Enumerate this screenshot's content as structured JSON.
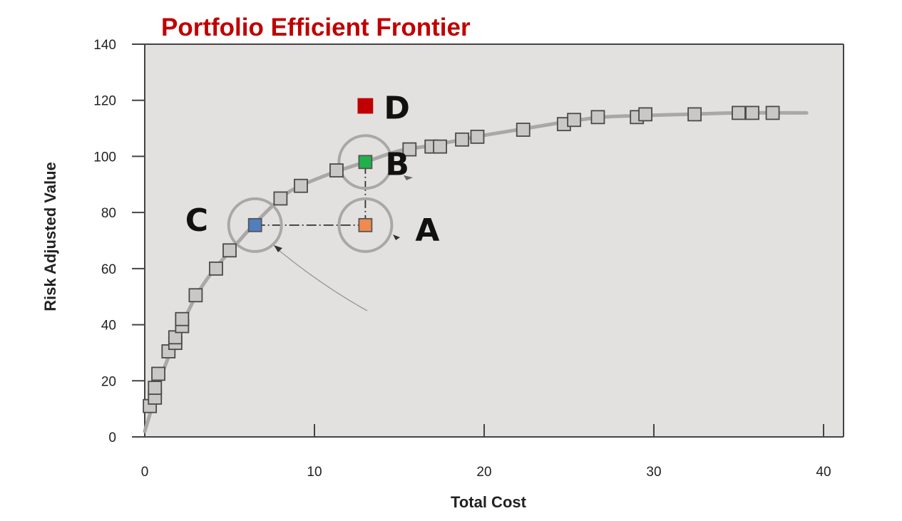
{
  "chart_data": {
    "type": "scatter",
    "title": "Portfolio Efficient Frontier",
    "xlabel": "Total Cost",
    "ylabel": "Risk Adjusted Value",
    "xlim": [
      0,
      40
    ],
    "ylim": [
      0,
      140
    ],
    "xticks": [
      "0",
      "10",
      "20",
      "30",
      "40"
    ],
    "yticks": [
      "0",
      "20",
      "40",
      "60",
      "80",
      "100",
      "120",
      "140"
    ],
    "grid": false,
    "background": "#e2e1e0",
    "frontier_curve": [
      [
        0,
        2
      ],
      [
        0.5,
        12
      ],
      [
        1,
        22
      ],
      [
        1.5,
        30
      ],
      [
        2.2,
        40
      ],
      [
        3,
        50
      ],
      [
        4,
        59
      ],
      [
        5,
        66
      ],
      [
        6.4,
        75.5
      ],
      [
        8,
        85
      ],
      [
        9,
        89
      ],
      [
        11,
        94
      ],
      [
        13,
        98
      ],
      [
        15,
        102
      ],
      [
        17,
        104
      ],
      [
        20,
        107.5
      ],
      [
        22.5,
        110
      ],
      [
        25,
        112.5
      ],
      [
        27,
        114
      ],
      [
        29,
        114.5
      ],
      [
        32,
        115
      ],
      [
        35,
        115.5
      ],
      [
        39,
        115.5
      ]
    ],
    "series": [
      {
        "values": [
          [
            0.3,
            11
          ],
          [
            0.6,
            14
          ],
          [
            0.6,
            17.5
          ],
          [
            0.8,
            22.5
          ],
          [
            1.4,
            30.5
          ],
          [
            1.8,
            33.5
          ],
          [
            1.8,
            35.5
          ],
          [
            2.2,
            39.5
          ],
          [
            2.2,
            42
          ],
          [
            3,
            50.5
          ],
          [
            4.2,
            60
          ],
          [
            5,
            66.5
          ],
          [
            8,
            85
          ],
          [
            9.2,
            89.5
          ],
          [
            11.3,
            95
          ],
          [
            15.6,
            102.5
          ],
          [
            16.9,
            103.5
          ],
          [
            17.4,
            103.5
          ],
          [
            18.7,
            106
          ],
          [
            19.6,
            107
          ],
          [
            22.3,
            109.5
          ],
          [
            24.7,
            111.5
          ],
          [
            25.3,
            113
          ],
          [
            26.7,
            114
          ],
          [
            29,
            114
          ],
          [
            29.5,
            115
          ],
          [
            32.4,
            115
          ],
          [
            35,
            115.5
          ],
          [
            35.8,
            115.5
          ],
          [
            37,
            115.5
          ]
        ]
      }
    ],
    "highlighted_points": [
      {
        "label": "A",
        "x": 13,
        "y": 75.5,
        "color": "#f08a50"
      },
      {
        "label": "B",
        "x": 13,
        "y": 98,
        "color": "#1fb24a"
      },
      {
        "label": "C",
        "x": 6.5,
        "y": 75.5,
        "color": "#4f7fbf"
      },
      {
        "label": "D",
        "x": 13,
        "y": 118,
        "color": "#c00000"
      }
    ]
  }
}
